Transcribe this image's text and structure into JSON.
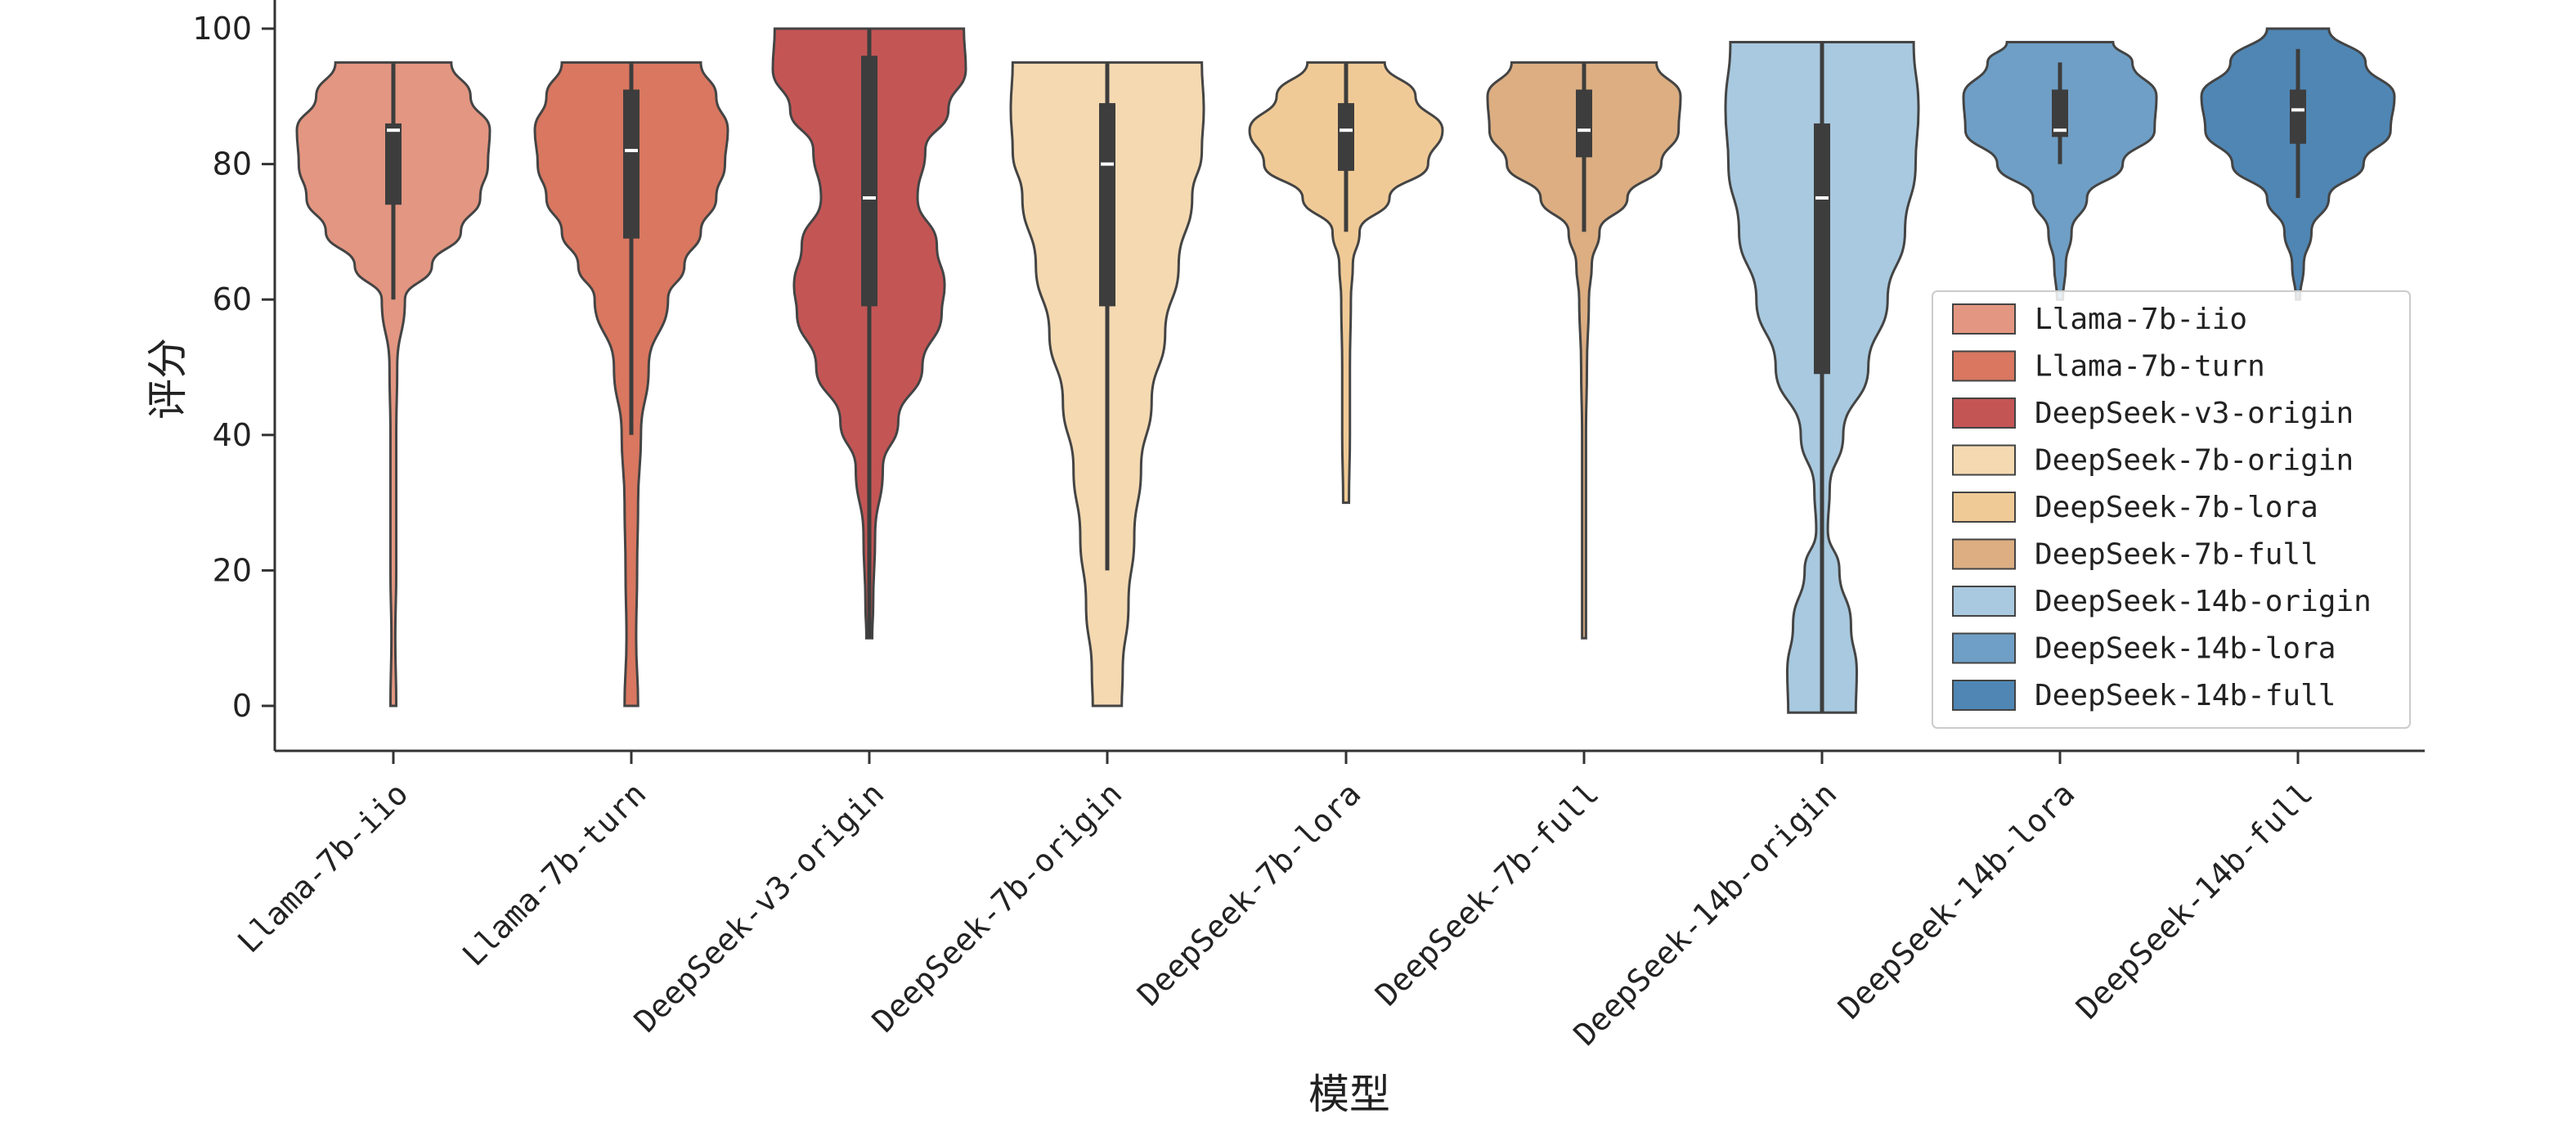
{
  "chart_data": {
    "type": "violin",
    "xlabel": "模型",
    "ylabel": "评分",
    "ylim": [
      -6,
      104
    ],
    "yticks": [
      0,
      20,
      40,
      60,
      80,
      100
    ],
    "grid": false,
    "legend": "lower right",
    "edge_color": "#444444",
    "categories": [
      "Llama-7b-iio",
      "Llama-7b-turn",
      "DeepSeek-v3-origin",
      "DeepSeek-7b-origin",
      "DeepSeek-7b-lora",
      "DeepSeek-7b-full",
      "DeepSeek-14b-origin",
      "DeepSeek-14b-lora",
      "DeepSeek-14b-full"
    ],
    "series": [
      {
        "name": "Llama-7b-iio",
        "color": "#e39681",
        "min": 0,
        "max": 95,
        "q1": 74,
        "median": 85,
        "q3": 86,
        "whisker": [
          60,
          95
        ],
        "density": [
          [
            0,
            0.03
          ],
          [
            10,
            0.02
          ],
          [
            20,
            0.03
          ],
          [
            30,
            0.03
          ],
          [
            40,
            0.03
          ],
          [
            50,
            0.04
          ],
          [
            60,
            0.12
          ],
          [
            65,
            0.4
          ],
          [
            70,
            0.7
          ],
          [
            75,
            0.9
          ],
          [
            80,
            0.98
          ],
          [
            85,
            1.0
          ],
          [
            90,
            0.8
          ],
          [
            95,
            0.6
          ]
        ]
      },
      {
        "name": "Llama-7b-turn",
        "color": "#d97760",
        "min": 0,
        "max": 95,
        "q1": 69,
        "median": 82,
        "q3": 91,
        "whisker": [
          40,
          95
        ],
        "density": [
          [
            0,
            0.07
          ],
          [
            10,
            0.05
          ],
          [
            20,
            0.06
          ],
          [
            30,
            0.07
          ],
          [
            40,
            0.1
          ],
          [
            50,
            0.18
          ],
          [
            60,
            0.38
          ],
          [
            65,
            0.55
          ],
          [
            70,
            0.72
          ],
          [
            75,
            0.88
          ],
          [
            80,
            0.97
          ],
          [
            85,
            1.0
          ],
          [
            90,
            0.88
          ],
          [
            95,
            0.72
          ]
        ]
      },
      {
        "name": "DeepSeek-v3-origin",
        "color": "#c45555",
        "min": 10,
        "max": 100,
        "q1": 59,
        "median": 75,
        "q3": 96,
        "whisker": [
          10,
          100
        ],
        "density": [
          [
            10,
            0.03
          ],
          [
            15,
            0.04
          ],
          [
            25,
            0.06
          ],
          [
            35,
            0.14
          ],
          [
            42,
            0.3
          ],
          [
            50,
            0.55
          ],
          [
            58,
            0.75
          ],
          [
            62,
            0.78
          ],
          [
            68,
            0.7
          ],
          [
            75,
            0.5
          ],
          [
            82,
            0.58
          ],
          [
            88,
            0.82
          ],
          [
            94,
            1.0
          ],
          [
            100,
            0.98
          ]
        ]
      },
      {
        "name": "DeepSeek-7b-origin",
        "color": "#f4d9b1",
        "min": 0,
        "max": 95,
        "q1": 59,
        "median": 80,
        "q3": 89,
        "whisker": [
          20,
          95
        ],
        "density": [
          [
            0,
            0.15
          ],
          [
            5,
            0.16
          ],
          [
            15,
            0.22
          ],
          [
            25,
            0.28
          ],
          [
            35,
            0.35
          ],
          [
            45,
            0.46
          ],
          [
            55,
            0.6
          ],
          [
            65,
            0.74
          ],
          [
            75,
            0.88
          ],
          [
            82,
            0.98
          ],
          [
            88,
            1.0
          ],
          [
            95,
            0.98
          ]
        ]
      },
      {
        "name": "DeepSeek-7b-lora",
        "color": "#f0ca96",
        "min": 30,
        "max": 95,
        "q1": 79,
        "median": 85,
        "q3": 89,
        "whisker": [
          70,
          95
        ],
        "density": [
          [
            30,
            0.03
          ],
          [
            40,
            0.04
          ],
          [
            50,
            0.04
          ],
          [
            60,
            0.05
          ],
          [
            65,
            0.07
          ],
          [
            70,
            0.14
          ],
          [
            75,
            0.45
          ],
          [
            80,
            0.85
          ],
          [
            85,
            1.0
          ],
          [
            90,
            0.72
          ],
          [
            95,
            0.4
          ]
        ]
      },
      {
        "name": "DeepSeek-7b-full",
        "color": "#dcae82",
        "min": 10,
        "max": 95,
        "q1": 81,
        "median": 85,
        "q3": 91,
        "whisker": [
          70,
          95
        ],
        "density": [
          [
            10,
            0.02
          ],
          [
            20,
            0.02
          ],
          [
            30,
            0.02
          ],
          [
            40,
            0.02
          ],
          [
            50,
            0.03
          ],
          [
            60,
            0.05
          ],
          [
            65,
            0.08
          ],
          [
            70,
            0.16
          ],
          [
            75,
            0.45
          ],
          [
            80,
            0.8
          ],
          [
            85,
            0.98
          ],
          [
            90,
            1.0
          ],
          [
            95,
            0.75
          ]
        ]
      },
      {
        "name": "DeepSeek-14b-origin",
        "color": "#a8c9df",
        "min": -1,
        "max": 98,
        "q1": 49,
        "median": 75,
        "q3": 86,
        "whisker": [
          -1,
          98
        ],
        "density": [
          [
            -1,
            0.35
          ],
          [
            5,
            0.36
          ],
          [
            12,
            0.3
          ],
          [
            20,
            0.18
          ],
          [
            26,
            0.06
          ],
          [
            32,
            0.08
          ],
          [
            40,
            0.22
          ],
          [
            50,
            0.48
          ],
          [
            60,
            0.68
          ],
          [
            70,
            0.86
          ],
          [
            80,
            0.97
          ],
          [
            88,
            1.0
          ],
          [
            98,
            0.95
          ]
        ]
      },
      {
        "name": "DeepSeek-14b-lora",
        "color": "#6f9fc6",
        "min": 60,
        "max": 98,
        "q1": 84,
        "median": 85,
        "q3": 91,
        "whisker": [
          80,
          95
        ],
        "density": [
          [
            60,
            0.03
          ],
          [
            65,
            0.06
          ],
          [
            70,
            0.12
          ],
          [
            75,
            0.28
          ],
          [
            80,
            0.65
          ],
          [
            85,
            0.98
          ],
          [
            90,
            1.0
          ],
          [
            95,
            0.75
          ],
          [
            98,
            0.55
          ]
        ]
      },
      {
        "name": "DeepSeek-14b-full",
        "color": "#4f86b4",
        "min": 60,
        "max": 100,
        "q1": 83,
        "median": 88,
        "q3": 91,
        "whisker": [
          75,
          97
        ],
        "density": [
          [
            60,
            0.02
          ],
          [
            65,
            0.06
          ],
          [
            70,
            0.14
          ],
          [
            75,
            0.32
          ],
          [
            80,
            0.68
          ],
          [
            85,
            0.96
          ],
          [
            90,
            1.0
          ],
          [
            95,
            0.7
          ],
          [
            100,
            0.32
          ]
        ]
      }
    ]
  }
}
